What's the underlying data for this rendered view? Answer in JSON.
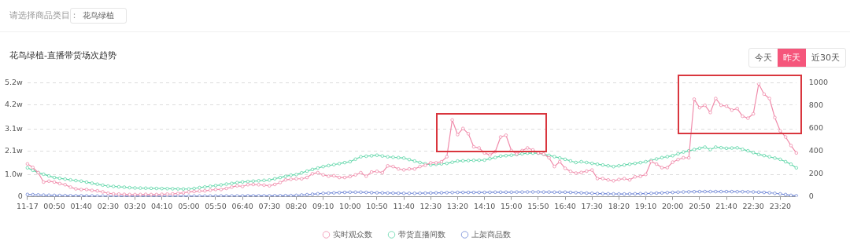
{
  "chart_data": {
    "type": "line",
    "title": "花鸟绿植-直播带货场次趋势",
    "annotations": [
      "请选择商品类目：",
      "花鸟绿植",
      "今天",
      "昨天",
      "近30天"
    ],
    "categories": [
      "11-17",
      null,
      null,
      null,
      null,
      "00:50",
      null,
      null,
      null,
      null,
      "01:40",
      null,
      null,
      null,
      null,
      "02:30",
      null,
      null,
      null,
      null,
      "03:20",
      null,
      null,
      null,
      null,
      "04:10",
      null,
      null,
      null,
      null,
      "05:00",
      null,
      null,
      null,
      null,
      "05:50",
      null,
      null,
      null,
      null,
      "06:40",
      null,
      null,
      null,
      null,
      "07:30",
      null,
      null,
      null,
      null,
      "08:20",
      null,
      null,
      null,
      null,
      "09:10",
      null,
      null,
      null,
      null,
      "10:00",
      null,
      null,
      null,
      null,
      "10:50",
      null,
      null,
      null,
      null,
      "11:40",
      null,
      null,
      null,
      null,
      "12:30",
      null,
      null,
      null,
      null,
      "13:20",
      null,
      null,
      null,
      null,
      "14:10",
      null,
      null,
      null,
      null,
      "15:00",
      null,
      null,
      null,
      null,
      "15:50",
      null,
      null,
      null,
      null,
      "16:40",
      null,
      null,
      null,
      null,
      "17:30",
      null,
      null,
      null,
      null,
      "18:20",
      null,
      null,
      null,
      null,
      "19:10",
      null,
      null,
      null,
      null,
      "20:00",
      null,
      null,
      null,
      null,
      "20:50",
      null,
      null,
      null,
      null,
      "21:40",
      null,
      null,
      null,
      null,
      "22:30",
      null,
      null,
      null,
      null,
      "23:20",
      null,
      null,
      null
    ],
    "series": [
      {
        "name": "实时观众数",
        "color": "#f08cab",
        "values": [
          1.5,
          1.34,
          1.1,
          0.67,
          0.71,
          0.67,
          0.6,
          0.55,
          0.44,
          0.36,
          0.33,
          0.33,
          0.29,
          0.27,
          0.22,
          0.16,
          0.13,
          0.12,
          0.11,
          0.1,
          0.1,
          0.1,
          0.11,
          0.1,
          0.1,
          0.11,
          0.12,
          0.13,
          0.15,
          0.18,
          0.22,
          0.24,
          0.26,
          0.27,
          0.3,
          0.33,
          0.33,
          0.38,
          0.44,
          0.5,
          0.47,
          0.55,
          0.56,
          0.55,
          0.53,
          0.5,
          0.56,
          0.65,
          0.77,
          0.8,
          0.82,
          0.82,
          0.88,
          1.05,
          1.1,
          1.0,
          0.94,
          0.96,
          0.88,
          0.88,
          0.92,
          1.0,
          1.1,
          0.94,
          1.13,
          1.16,
          1.1,
          1.41,
          1.38,
          1.27,
          1.23,
          1.27,
          1.27,
          1.38,
          1.44,
          1.55,
          1.55,
          1.6,
          1.83,
          3.51,
          2.84,
          3.12,
          2.88,
          2.28,
          2.23,
          2.0,
          1.91,
          2.06,
          2.73,
          2.81,
          2.11,
          1.95,
          2.11,
          2.23,
          2.14,
          2.0,
          1.95,
          1.78,
          1.38,
          1.6,
          1.3,
          1.16,
          1.08,
          1.11,
          1.17,
          1.22,
          0.83,
          0.83,
          0.77,
          0.73,
          0.79,
          0.83,
          0.77,
          0.91,
          0.93,
          1.02,
          1.61,
          1.49,
          1.33,
          1.33,
          1.58,
          1.7,
          1.78,
          1.78,
          4.46,
          4.07,
          4.18,
          3.85,
          4.49,
          4.18,
          4.14,
          3.96,
          4.03,
          3.68,
          3.59,
          3.79,
          5.16,
          4.69,
          4.49,
          3.62,
          3.01,
          2.73,
          2.34,
          2.0
        ]
      },
      {
        "name": "带货直播间数",
        "color": "#5fd6a8",
        "axis": "y2",
        "values": [
          254,
          233,
          212,
          198,
          183,
          169,
          162,
          155,
          148,
          142,
          137,
          128,
          119,
          110,
          102,
          94,
          91,
          87,
          84,
          80,
          77,
          76,
          75,
          74,
          73,
          72,
          71,
          70,
          69,
          68,
          68,
          73,
          80,
          86,
          92,
          98,
          104,
          111,
          117,
          124,
          130,
          133,
          137,
          140,
          144,
          147,
          158,
          169,
          179,
          190,
          195,
          210,
          225,
          240,
          252,
          265,
          274,
          282,
          291,
          300,
          308,
          330,
          351,
          356,
          360,
          365,
          358,
          351,
          347,
          344,
          340,
          327,
          314,
          301,
          290,
          280,
          285,
          289,
          293,
          303,
          314,
          316,
          318,
          320,
          321,
          322,
          334,
          345,
          357,
          361,
          365,
          371,
          377,
          383,
          383,
          383,
          373,
          364,
          352,
          341,
          329,
          315,
          301,
          308,
          301,
          293,
          286,
          279,
          272,
          265,
          272,
          279,
          286,
          293,
          300,
          308,
          320,
          332,
          344,
          352,
          361,
          377,
          393,
          404,
          415,
          426,
          436,
          415,
          436,
          431,
          426,
          428,
          430,
          417,
          404,
          388,
          372,
          362,
          351,
          340,
          329,
          308,
          286,
          254
        ]
      },
      {
        "name": "上架商品数",
        "color": "#6f86d6",
        "axis": "y2",
        "values": [
          20,
          18,
          16,
          14,
          13,
          12,
          11,
          10,
          9,
          8,
          8,
          7,
          7,
          6,
          6,
          6,
          5,
          5,
          5,
          5,
          5,
          5,
          5,
          5,
          5,
          5,
          5,
          5,
          5,
          5,
          5,
          6,
          6,
          6,
          6,
          6,
          7,
          7,
          7,
          7,
          7,
          8,
          8,
          8,
          8,
          8,
          9,
          9,
          10,
          10,
          12,
          15,
          18,
          22,
          26,
          30,
          32,
          34,
          36,
          38,
          40,
          40,
          40,
          38,
          36,
          35,
          34,
          33,
          32,
          31,
          30,
          30,
          30,
          31,
          32,
          33,
          34,
          35,
          36,
          37,
          38,
          38,
          38,
          38,
          38,
          38,
          39,
          40,
          40,
          40,
          40,
          41,
          41,
          42,
          42,
          42,
          41,
          41,
          40,
          40,
          40,
          38,
          36,
          34,
          32,
          30,
          28,
          27,
          26,
          25,
          24,
          24,
          25,
          26,
          27,
          28,
          30,
          32,
          34,
          36,
          38,
          40,
          42,
          43,
          44,
          45,
          45,
          45,
          45,
          45,
          45,
          45,
          44,
          44,
          43,
          42,
          40,
          38,
          35,
          30,
          25,
          19,
          12,
          8
        ]
      }
    ],
    "ylim": [
      0,
      5.2
    ],
    "yticks": [
      0,
      {
        "value": 1.0,
        "label": "1.0w"
      },
      {
        "value": 2.1,
        "label": "2.1w"
      },
      {
        "value": 3.1,
        "label": "3.1w"
      },
      {
        "value": 4.2,
        "label": "4.2w"
      },
      {
        "value": 5.2,
        "label": "5.2w"
      }
    ],
    "y2lim": [
      0,
      1000
    ],
    "y2ticks": [
      0,
      200,
      400,
      600,
      800,
      1000
    ],
    "grid": "y",
    "legend": "bottom",
    "marker": "circle",
    "line_style": "solid"
  }
}
